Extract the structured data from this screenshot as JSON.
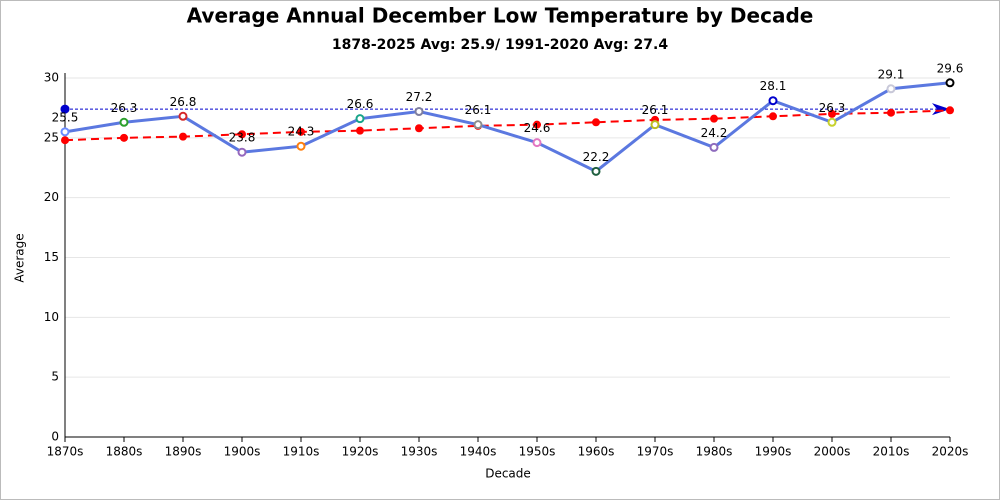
{
  "chart_data": {
    "type": "line",
    "title": "Average Annual December Low Temperature by Decade",
    "subtitle": "1878-2025 Avg: 25.9/ 1991-2020 Avg: 27.4",
    "x_label": "Decade",
    "y_label": "Average",
    "categories": [
      "1870s",
      "1880s",
      "1890s",
      "1900s",
      "1910s",
      "1920s",
      "1930s",
      "1940s",
      "1950s",
      "1960s",
      "1970s",
      "1980s",
      "1990s",
      "2000s",
      "2010s",
      "2020s"
    ],
    "series": [
      {
        "color": "#5b78e0",
        "values": [
          25.5,
          26.3,
          26.8,
          23.8,
          24.3,
          26.6,
          27.2,
          26.1,
          24.6,
          22.2,
          26.1,
          24.2,
          28.1,
          26.3,
          29.1,
          29.6
        ],
        "marker_colors": [
          "#6a8cff",
          "#2ca02c",
          "#d62728",
          "#9467bd",
          "#ff7f0e",
          "#17a589",
          "#7f7f9f",
          "#8c8c8c",
          "#e377c2",
          "#1f5f3f",
          "#bcbd22",
          "#8e6bbd",
          "#0000cd",
          "#c7d12c",
          "#c8c8d8",
          "#000000"
        ],
        "data_labels": true
      },
      {
        "color": "#ff0000",
        "values": [
          24.8,
          25.0,
          25.1,
          25.3,
          25.5,
          25.6,
          25.8,
          26.0,
          26.1,
          26.3,
          26.5,
          26.6,
          26.8,
          27.0,
          27.1,
          27.3
        ],
        "dashed": true
      }
    ],
    "reference_line": {
      "value": 27.4,
      "color": "#0000cd"
    },
    "ylim": [
      0,
      30
    ],
    "yticks": [
      0,
      5,
      10,
      15,
      20,
      25,
      30
    ],
    "grid": true
  }
}
